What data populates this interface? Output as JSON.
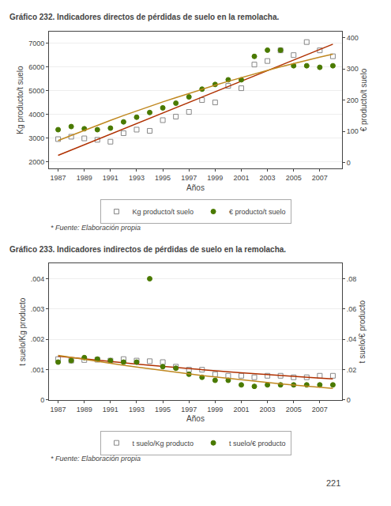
{
  "chart_data": [
    {
      "type": "scatter",
      "title": "Gráfico 232. Indicadores directos de pérdidas de suelo en la remolacha.",
      "x_label": "Años",
      "y_label": "Kg producto/t suelo",
      "y2_label": "€ producto/t suelo",
      "x": [
        1987,
        1988,
        1989,
        1990,
        1991,
        1992,
        1993,
        1994,
        1995,
        1996,
        1997,
        1998,
        1999,
        2000,
        2001,
        2002,
        2003,
        2004,
        2005,
        2006,
        2007,
        2008
      ],
      "xlim": [
        1986.3,
        2008.7
      ],
      "xticks": [
        1987,
        1989,
        1991,
        1993,
        1995,
        1997,
        1999,
        2001,
        2003,
        2005,
        2007
      ],
      "ylim": [
        1700,
        7500
      ],
      "yticks": [
        2000,
        3000,
        4000,
        5000,
        6000,
        7000
      ],
      "y2lim": [
        -20,
        420
      ],
      "y2ticks": [
        0,
        100,
        200,
        300,
        400
      ],
      "grid": true,
      "legend": "bottom",
      "annotations": [
        "* Fuente: Elaboración propia"
      ],
      "series": [
        {
          "name": "Kg producto/t suelo",
          "type": "scatter",
          "marker": "square-open",
          "color": "#888888",
          "values": [
            2950,
            3050,
            2980,
            2920,
            2840,
            3200,
            3350,
            3300,
            3750,
            3900,
            4100,
            4600,
            4500,
            5200,
            5100,
            6100,
            6250,
            6700,
            6500,
            7050,
            6700,
            6450
          ]
        },
        {
          "name": "€ producto/t suelo",
          "type": "scatter",
          "marker": "circle",
          "color": "#4a7a00",
          "axis": "y2",
          "values": [
            105,
            115,
            108,
            105,
            110,
            130,
            145,
            160,
            175,
            190,
            210,
            235,
            250,
            265,
            265,
            340,
            360,
            360,
            310,
            310,
            305,
            310
          ]
        },
        {
          "type": "line",
          "color": "#b03000",
          "values": [
            2263.16,
            2486.97,
            2710.78,
            2934.6,
            3158.41,
            3382.22,
            3606.03,
            3829.84,
            4053.65,
            4277.46,
            4501.28,
            4725.09,
            4948.9,
            5172.71,
            5396.52,
            5620.33,
            5844.14,
            6067.96,
            6291.77,
            6515.58,
            6739.39,
            6963.2
          ]
        },
        {
          "type": "line",
          "color": "#c08820",
          "axis": "y2",
          "values": [
            70.33,
            87.02,
            103.36,
            119.36,
            135.0,
            150.29,
            165.23,
            179.82,
            194.05,
            207.94,
            221.47,
            234.66,
            247.49,
            259.97,
            272.1,
            283.88,
            295.31,
            306.39,
            317.12,
            327.49,
            337.52,
            347.19
          ]
        }
      ]
    },
    {
      "type": "scatter",
      "title": "Gráfico 233. Indicadores indirectos de pérdidas de suelo en la remolacha.",
      "x_label": "Años",
      "y_label": "t suelo/Kg producto",
      "y2_label": "t suelo/€ producto",
      "x": [
        1987,
        1988,
        1989,
        1990,
        1991,
        1992,
        1993,
        1994,
        1995,
        1996,
        1997,
        1998,
        1999,
        2000,
        2001,
        2002,
        2003,
        2004,
        2005,
        2006,
        2007,
        2008
      ],
      "xlim": [
        1986.3,
        2008.7
      ],
      "xticks": [
        1987,
        1989,
        1991,
        1993,
        1995,
        1997,
        1999,
        2001,
        2003,
        2005,
        2007
      ],
      "ylim": [
        0,
        0.0045
      ],
      "yticks": [
        0,
        {
          "value": 0.001,
          "label": ".001"
        },
        {
          "value": 0.002,
          "label": ".002"
        },
        {
          "value": 0.003,
          "label": ".003"
        },
        {
          "value": 0.004,
          "label": ".004"
        }
      ],
      "y2lim": [
        0,
        0.09
      ],
      "y2ticks": [
        0,
        {
          "value": 0.02,
          "label": ".02"
        },
        {
          "value": 0.04,
          "label": ".04"
        },
        {
          "value": 0.06,
          "label": ".06"
        },
        {
          "value": 0.08,
          "label": ".08"
        }
      ],
      "grid": true,
      "legend": "bottom",
      "annotations": [
        "* Fuente: Elaboración propia"
      ],
      "series": [
        {
          "name": "t suelo/Kg producto",
          "type": "scatter",
          "marker": "square-open",
          "color": "#888888",
          "values": [
            0.00135,
            0.0013,
            0.00132,
            0.00133,
            0.0013,
            0.00135,
            0.0013,
            0.00128,
            0.00125,
            0.0011,
            0.001,
            0.001,
            0.00085,
            0.0008,
            0.0008,
            0.00075,
            0.0008,
            0.0008,
            0.00075,
            0.00075,
            0.0008,
            0.0008
          ]
        },
        {
          "name": "t suelo/€ producto",
          "type": "scatter",
          "marker": "circle",
          "color": "#4a7a00",
          "axis": "y2",
          "values": [
            0.025,
            0.026,
            0.028,
            0.027,
            0.026,
            0.025,
            0.025,
            0.08,
            0.022,
            0.021,
            0.017,
            0.015,
            0.013,
            0.013,
            0.01,
            0.009,
            0.01,
            0.01,
            0.01,
            0.01,
            0.01,
            0.01
          ]
        },
        {
          "type": "line",
          "color": "#b03000",
          "values": [
            0.00144702,
            0.00140091,
            0.00135584,
            0.00131181,
            0.00126882,
            0.00122686,
            0.00118593,
            0.00114605,
            0.0011072,
            0.00106938,
            0.0010326,
            0.00099686,
            0.00096215,
            0.00092848,
            0.00089585,
            0.00086425,
            0.00083369,
            0.00080416,
            0.00077567,
            0.00074822,
            0.0007218,
            0.00069642
          ]
        },
        {
          "type": "line",
          "color": "#c08820",
          "axis": "y2",
          "values": [
            0.0295009,
            0.0281203,
            0.0267738,
            0.0254613,
            0.0241829,
            0.0229385,
            0.0217282,
            0.0205519,
            0.0194098,
            0.0183016,
            0.0172276,
            0.0161875,
            0.0151816,
            0.0142097,
            0.0132719,
            0.0123681,
            0.0114984,
            0.0106627,
            0.0098611,
            0.0090936,
            0.0083601,
            0.0076606
          ]
        }
      ]
    }
  ],
  "page_number": "221"
}
